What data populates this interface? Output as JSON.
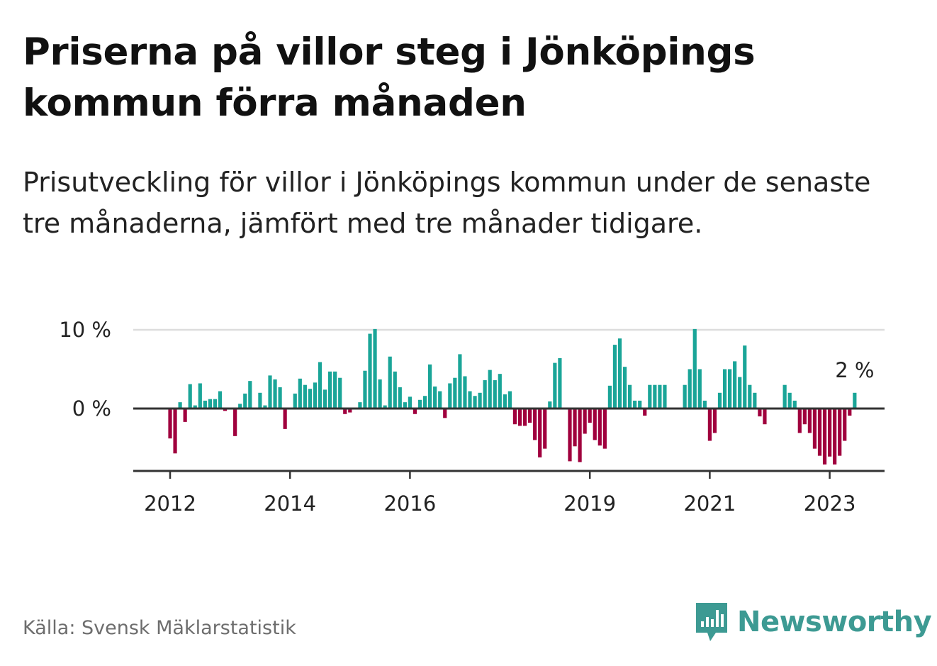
{
  "title": "Priserna på villor steg i Jönköpings kommun förra månaden",
  "subtitle": "Prisutveckling för villor i Jönköpings kommun under de senaste tre månaderna, jämfört med tre månader tidigare.",
  "source": "Källa: Svensk Mäklarstatistik",
  "brand": {
    "name": "Newsworthy",
    "icon": "newsworthy-logo-icon"
  },
  "colors": {
    "positive": "#1aa598",
    "negative": "#a0003d",
    "axis": "#333333",
    "grid": "#dddddd",
    "brand": "#3d9a93"
  },
  "chart_data": {
    "type": "bar",
    "unit": "%",
    "start": "2012-01",
    "frequency": "monthly",
    "ylim": [
      -8,
      10
    ],
    "y_ticks": [
      {
        "value": 10,
        "label": "10 %"
      },
      {
        "value": 0,
        "label": "0 %"
      }
    ],
    "x_ticks": [
      {
        "month": "2012-01",
        "label": "2012"
      },
      {
        "month": "2014-01",
        "label": "2014"
      },
      {
        "month": "2016-01",
        "label": "2016"
      },
      {
        "month": "2019-01",
        "label": "2019"
      },
      {
        "month": "2021-01",
        "label": "2021"
      },
      {
        "month": "2023-01",
        "label": "2023"
      }
    ],
    "last_value_label": "2 %",
    "values": [
      -3.8,
      -5.7,
      0.8,
      -1.7,
      3.1,
      0.4,
      3.2,
      1.0,
      1.2,
      1.2,
      2.2,
      -0.3,
      0,
      -3.5,
      0.6,
      1.9,
      3.5,
      0,
      2.0,
      0.4,
      4.2,
      3.7,
      2.7,
      -2.6,
      0,
      1.9,
      3.8,
      3.0,
      2.5,
      3.3,
      5.9,
      2.4,
      4.7,
      4.7,
      3.9,
      -0.7,
      -0.5,
      0,
      0.8,
      4.8,
      9.5,
      10.1,
      3.7,
      0.4,
      6.6,
      4.7,
      2.7,
      0.8,
      1.5,
      -0.7,
      1.1,
      1.6,
      5.6,
      2.8,
      2.2,
      -1.2,
      3.2,
      3.9,
      6.9,
      4.1,
      2.2,
      1.6,
      2.0,
      3.6,
      4.9,
      3.6,
      4.4,
      1.8,
      2.2,
      -2.0,
      -2.2,
      -2.2,
      -1.8,
      -4.0,
      -6.2,
      -5.1,
      0.9,
      5.8,
      6.4,
      0,
      -6.7,
      -4.8,
      -6.8,
      -3.2,
      -1.8,
      -4.0,
      -4.7,
      -5.1,
      2.9,
      8.1,
      8.9,
      5.3,
      3.0,
      1.0,
      1.0,
      -0.9,
      3.0,
      3.0,
      3.0,
      3.0,
      0,
      0,
      0,
      3.0,
      5.0,
      10.1,
      5.0,
      1.0,
      -4.1,
      -3.1,
      2.0,
      5.0,
      5.0,
      6.0,
      4.0,
      8.0,
      3.0,
      2.0,
      -1.0,
      -2.0,
      0,
      0,
      0,
      3.0,
      2.0,
      1.0,
      -3.1,
      -2.0,
      -3.1,
      -5.1,
      -6.0,
      -7.1,
      -6.1,
      -7.1,
      -6.0,
      -4.1,
      -0.9,
      2.0
    ]
  }
}
